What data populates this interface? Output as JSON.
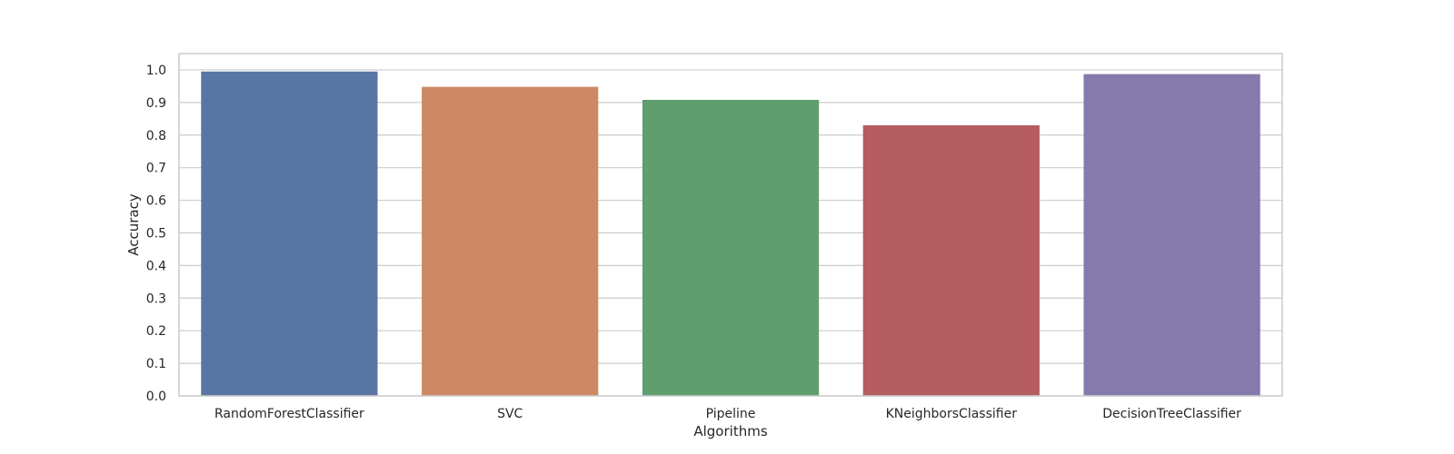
{
  "chart_data": {
    "type": "bar",
    "title": "",
    "xlabel": "Algorithms",
    "ylabel": "Accuracy",
    "categories": [
      "RandomForestClassifier",
      "SVC",
      "Pipeline",
      "KNeighborsClassifier",
      "DecisionTreeClassifier"
    ],
    "values": [
      0.995,
      0.948,
      0.908,
      0.83,
      0.987
    ],
    "colors": [
      "#5975a4",
      "#cc8963",
      "#5f9e6e",
      "#b55d60",
      "#857aab"
    ],
    "ylim": [
      0,
      1.05
    ],
    "yticks": [
      "0.0",
      "0.1",
      "0.2",
      "0.3",
      "0.4",
      "0.5",
      "0.6",
      "0.7",
      "0.8",
      "0.9",
      "1.0"
    ],
    "grid": true,
    "legend": "none"
  }
}
